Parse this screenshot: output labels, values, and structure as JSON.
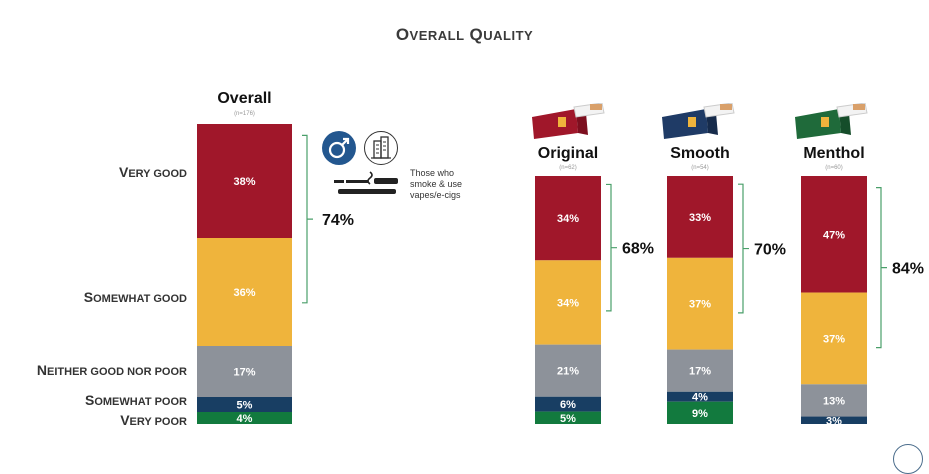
{
  "title_first": "O",
  "title_rest": "VERALL",
  "title_first2": "Q",
  "title_rest2": "UALITY",
  "colors": {
    "very_good": "#a0172a",
    "somewhat_good": "#efb43c",
    "neither": "#8d929a",
    "somewhat_poor": "#183e63",
    "very_poor": "#127a3e",
    "bracket": "#4a9f6a",
    "icon_circle": "#23578f"
  },
  "categories": [
    {
      "first": "V",
      "rest": "ERY GOOD"
    },
    {
      "first": "S",
      "rest": "OMEWHAT GOOD"
    },
    {
      "first": "N",
      "rest": "EITHER GOOD NOR POOR"
    },
    {
      "first": "S",
      "rest": "OMEWHAT POOR"
    },
    {
      "first": "V",
      "rest": "ERY POOR"
    }
  ],
  "callout_text": "Those who smoke & use vapes/e-cigs",
  "callout_icons": [
    "male-symbol-icon",
    "city-building-icon",
    "cigarette-vape-icon"
  ],
  "chart_data": {
    "type": "bar",
    "stacked": true,
    "title": "Overall Quality",
    "series_order": [
      "Very good",
      "Somewhat good",
      "Neither good nor poor",
      "Somewhat poor",
      "Very poor"
    ],
    "bars": [
      {
        "name": "Overall",
        "n": "(n=176)",
        "values": [
          38,
          36,
          17,
          5,
          4
        ],
        "labels": [
          "38%",
          "36%",
          "17%",
          "5%",
          "4%"
        ],
        "top2": "74%"
      },
      {
        "name": "Original",
        "n": "(n=62)",
        "values": [
          34,
          34,
          21,
          6,
          5
        ],
        "labels": [
          "34%",
          "34%",
          "21%",
          "6%",
          "5%"
        ],
        "top2": "68%"
      },
      {
        "name": "Smooth",
        "n": "(n=54)",
        "values": [
          33,
          37,
          17,
          4,
          9
        ],
        "labels": [
          "33%",
          "37%",
          "17%",
          "4%",
          "9%"
        ],
        "top2": "70%"
      },
      {
        "name": "Menthol",
        "n": "(n=60)",
        "values": [
          47,
          37,
          13,
          3,
          0
        ],
        "labels": [
          "47%",
          "37%",
          "13%",
          "3%",
          ""
        ],
        "top2": "84%"
      }
    ],
    "pack_colors": {
      "Original": "#a0172a",
      "Smooth": "#1f3b66",
      "Menthol": "#1f6a3a"
    }
  }
}
